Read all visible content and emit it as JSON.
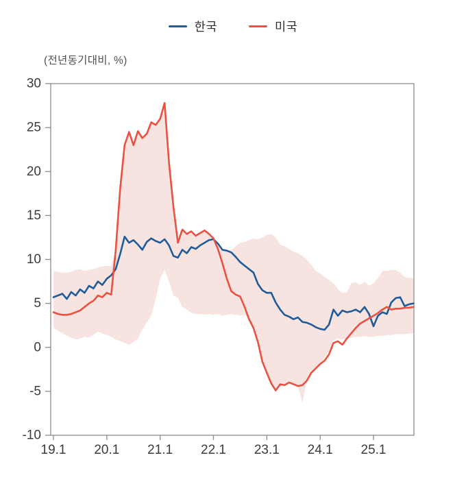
{
  "page": {
    "background": "#ffffff"
  },
  "chart_data": {
    "type": "line",
    "title": "",
    "unit_label": "(전년동기대비, %)",
    "start": "2019-01",
    "freq": "monthly",
    "n_points": 82,
    "legend_position": "top",
    "grid": false,
    "ylim": [
      -10,
      30
    ],
    "yticks": [
      30,
      25,
      20,
      15,
      10,
      5,
      0,
      -5,
      -10
    ],
    "x_tick_labels": [
      "19.1",
      "20.1",
      "21.1",
      "22.1",
      "23.1",
      "24.1",
      "25.1"
    ],
    "x_tick_month_index": [
      0,
      12,
      24,
      36,
      48,
      60,
      72
    ],
    "colors": {
      "korea_line": "#1f5b99",
      "us_line": "#ea5140",
      "band_fill": "#f7e4e1",
      "axis": "#8c8c8c",
      "tick_text": "#3b3b3b"
    },
    "series": [
      {
        "name": "한국",
        "color": "#1f5b99",
        "values": [
          5.7,
          5.9,
          6.1,
          5.5,
          6.3,
          5.9,
          6.6,
          6.2,
          7.0,
          6.7,
          7.5,
          7.1,
          7.8,
          8.2,
          8.9,
          10.6,
          12.6,
          11.9,
          12.2,
          11.7,
          11.1,
          12.0,
          12.4,
          12.1,
          11.9,
          12.3,
          11.6,
          10.4,
          10.2,
          11.1,
          10.7,
          11.4,
          11.2,
          11.6,
          11.9,
          12.2,
          12.3,
          11.8,
          11.1,
          11.0,
          10.8,
          10.3,
          9.7,
          9.3,
          8.9,
          8.5,
          7.2,
          6.5,
          6.2,
          6.2,
          5.1,
          4.3,
          3.7,
          3.5,
          3.2,
          3.4,
          2.9,
          2.8,
          2.6,
          2.3,
          2.1,
          2.0,
          2.6,
          4.3,
          3.6,
          4.2,
          4.0,
          4.1,
          4.3,
          4.0,
          4.6,
          3.8,
          2.4,
          3.6,
          4.0,
          3.8,
          5.1,
          5.6,
          5.7,
          4.7,
          4.9,
          5.0
        ]
      },
      {
        "name": "미국",
        "color": "#ea5140",
        "values": [
          4.0,
          3.8,
          3.7,
          3.7,
          3.8,
          4.0,
          4.2,
          4.6,
          5.0,
          5.3,
          5.9,
          5.7,
          6.2,
          6.0,
          11.0,
          18.0,
          23.0,
          24.5,
          23.0,
          24.6,
          23.8,
          24.3,
          25.6,
          25.3,
          26.0,
          27.8,
          21.0,
          16.0,
          11.9,
          13.4,
          12.9,
          13.2,
          12.7,
          13.0,
          13.3,
          12.9,
          12.4,
          11.2,
          9.6,
          7.8,
          6.4,
          6.0,
          5.8,
          4.6,
          3.2,
          2.2,
          0.6,
          -1.6,
          -2.9,
          -4.1,
          -4.9,
          -4.2,
          -4.3,
          -4.0,
          -4.2,
          -4.4,
          -4.3,
          -3.8,
          -2.9,
          -2.4,
          -1.9,
          -1.5,
          -0.8,
          0.5,
          0.7,
          0.3,
          1.0,
          1.6,
          2.2,
          2.7,
          3.0,
          3.3,
          3.6,
          3.9,
          4.3,
          4.6,
          4.3,
          4.4,
          4.4,
          4.5,
          4.5,
          4.6
        ]
      }
    ],
    "band": {
      "fill": "#f7e4e1",
      "upper": [
        8.7,
        8.6,
        8.5,
        8.5,
        8.6,
        8.8,
        8.9,
        8.7,
        8.8,
        8.9,
        9.1,
        9.2,
        9.3,
        9.2,
        11.0,
        18.0,
        23.0,
        24.5,
        23.0,
        24.6,
        23.8,
        24.3,
        25.6,
        25.3,
        26.0,
        27.8,
        21.0,
        16.0,
        11.9,
        13.4,
        12.9,
        13.2,
        12.7,
        13.0,
        13.3,
        12.9,
        12.4,
        11.5,
        11.0,
        11.0,
        11.1,
        11.5,
        11.9,
        12.0,
        12.2,
        12.4,
        12.3,
        12.5,
        12.8,
        12.9,
        12.5,
        11.7,
        11.5,
        11.2,
        10.9,
        10.7,
        10.4,
        10.0,
        9.4,
        8.7,
        8.4,
        8.0,
        7.7,
        7.3,
        6.6,
        6.2,
        6.3,
        7.3,
        7.4,
        7.1,
        7.5,
        7.0,
        7.3,
        7.9,
        8.7,
        8.7,
        8.8,
        8.8,
        8.5,
        8.0,
        7.9,
        7.9
      ],
      "lower": [
        2.2,
        1.9,
        1.6,
        1.3,
        1.1,
        0.9,
        1.0,
        1.2,
        1.1,
        1.4,
        1.8,
        1.6,
        1.4,
        1.2,
        0.9,
        0.7,
        0.5,
        0.3,
        0.6,
        1.0,
        2.0,
        2.8,
        3.6,
        5.5,
        7.8,
        8.8,
        7.5,
        5.9,
        5.6,
        4.6,
        4.3,
        3.9,
        3.8,
        3.8,
        3.7,
        3.8,
        3.7,
        3.8,
        3.6,
        3.7,
        3.8,
        3.7,
        3.6,
        3.7,
        3.2,
        2.2,
        0.6,
        -1.6,
        -2.9,
        -4.1,
        -4.9,
        -4.2,
        -4.3,
        -4.0,
        -4.2,
        -4.4,
        -6.3,
        -3.8,
        -2.9,
        -2.4,
        -1.9,
        -1.2,
        -0.4,
        0.8,
        1.0,
        0.9,
        1.0,
        1.1,
        1.2,
        1.2,
        1.3,
        1.2,
        1.2,
        1.3,
        1.3,
        1.4,
        1.4,
        1.5,
        1.5,
        1.5,
        1.6,
        1.6
      ]
    }
  }
}
